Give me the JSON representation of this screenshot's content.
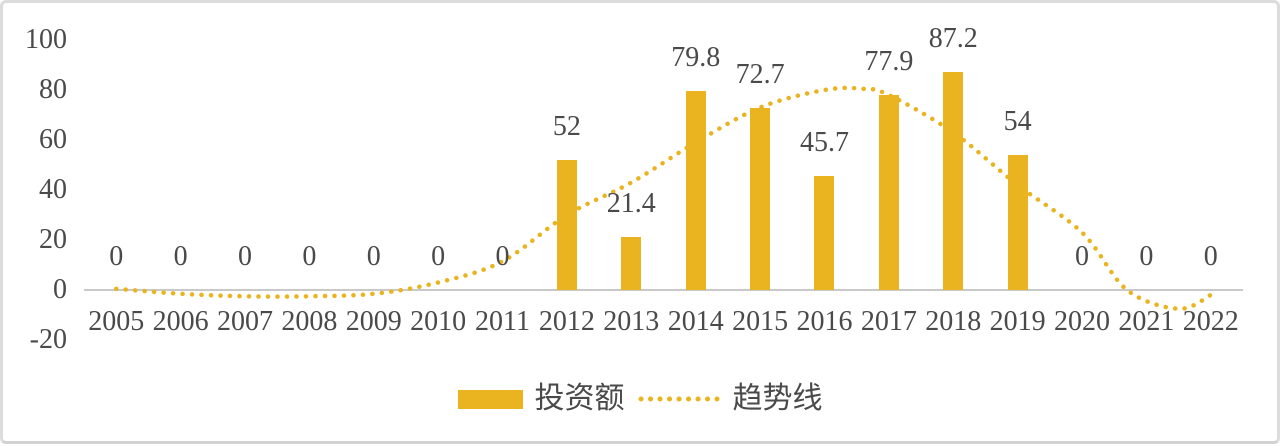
{
  "chart_data": {
    "type": "bar",
    "title": "",
    "xlabel": "",
    "ylabel": "",
    "categories": [
      "2005",
      "2006",
      "2007",
      "2008",
      "2009",
      "2010",
      "2011",
      "2012",
      "2013",
      "2014",
      "2015",
      "2016",
      "2017",
      "2018",
      "2019",
      "2020",
      "2021",
      "2022"
    ],
    "series": [
      {
        "name": "投资额",
        "type": "bar",
        "values": [
          0,
          0,
          0,
          0,
          0,
          0,
          0,
          52,
          21.4,
          79.8,
          72.7,
          45.7,
          77.9,
          87.2,
          54,
          0,
          0,
          0
        ],
        "labels": [
          "0",
          "0",
          "0",
          "0",
          "0",
          "0",
          "0",
          "52",
          "21.4",
          "79.8",
          "72.7",
          "45.7",
          "77.9",
          "87.2",
          "54",
          "0",
          "0",
          "0"
        ]
      },
      {
        "name": "趋势线",
        "type": "line-dotted",
        "points": [
          [
            2005,
            0.5
          ],
          [
            2006,
            -1.5
          ],
          [
            2007,
            -2.5
          ],
          [
            2008,
            -2.5
          ],
          [
            2009,
            -1.5
          ],
          [
            2010,
            3
          ],
          [
            2011,
            11.5
          ],
          [
            2012,
            30
          ],
          [
            2013,
            43
          ],
          [
            2014,
            59
          ],
          [
            2015,
            73
          ],
          [
            2016,
            80
          ],
          [
            2016.6,
            80.5
          ],
          [
            2017,
            78
          ],
          [
            2018,
            63
          ],
          [
            2019,
            42
          ],
          [
            2020,
            23
          ],
          [
            2020.7,
            0
          ],
          [
            2021.5,
            -7.5
          ],
          [
            2022,
            -2
          ]
        ]
      }
    ],
    "yticks": [
      100,
      80,
      60,
      40,
      20,
      0,
      -20
    ],
    "ylim": [
      -20,
      100
    ],
    "grid": false,
    "legend_position": "bottom",
    "legend": [
      {
        "label": "投资额",
        "marker": "bar-swatch"
      },
      {
        "label": "趋势线",
        "marker": "dotted-line"
      }
    ],
    "colors": {
      "bar": "#E9B41F",
      "trend": "#E9B41F",
      "text": "#4A4A4A",
      "axis": "#C9C9C9",
      "border": "#DCDCDC",
      "background": "#FFFFFF"
    }
  }
}
